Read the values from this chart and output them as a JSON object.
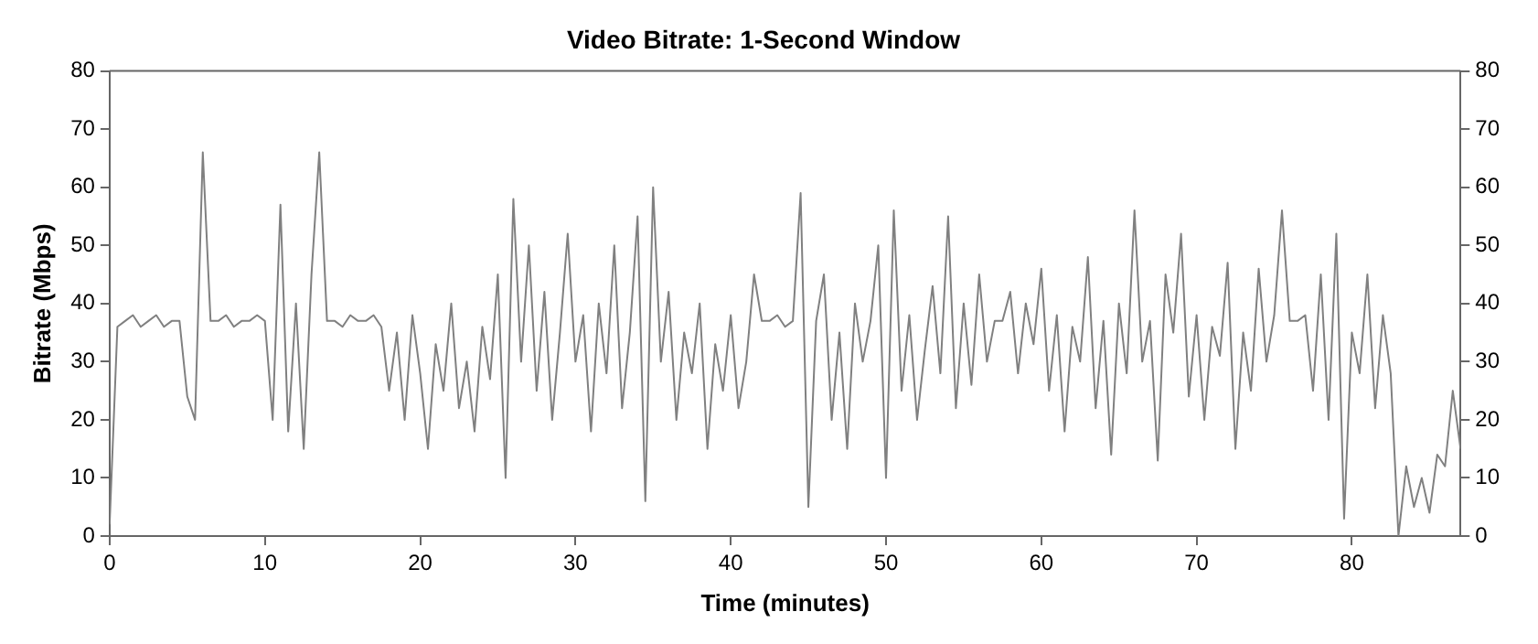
{
  "chart_data": {
    "type": "line",
    "title": "Video Bitrate: 1-Second Window",
    "xlabel": "Time (minutes)",
    "ylabel": "Bitrate (Mbps)",
    "xlim": [
      0,
      87
    ],
    "xticks": [
      0,
      10,
      20,
      30,
      40,
      50,
      60,
      70,
      80
    ],
    "ylim": [
      0,
      80
    ],
    "yticks": [
      0,
      10,
      20,
      30,
      40,
      50,
      60,
      70,
      80
    ],
    "y2lim": [
      0,
      80
    ],
    "y2ticks": [
      0,
      10,
      20,
      30,
      40,
      50,
      60,
      70,
      80
    ],
    "grid": false,
    "legend": false,
    "marker": "none",
    "line_style": "solid",
    "x": [
      0,
      0.5,
      1,
      1.5,
      2,
      2.5,
      3,
      3.5,
      4,
      4.5,
      5,
      5.5,
      6,
      6.5,
      7,
      7.5,
      8,
      8.5,
      9,
      9.5,
      10,
      10.5,
      11,
      11.5,
      12,
      12.5,
      13,
      13.5,
      14,
      14.5,
      15,
      15.5,
      16,
      16.5,
      17,
      17.5,
      18,
      18.5,
      19,
      19.5,
      20,
      20.5,
      21,
      21.5,
      22,
      22.5,
      23,
      23.5,
      24,
      24.5,
      25,
      25.5,
      26,
      26.5,
      27,
      27.5,
      28,
      28.5,
      29,
      29.5,
      30,
      30.5,
      31,
      31.5,
      32,
      32.5,
      33,
      33.5,
      34,
      34.5,
      35,
      35.5,
      36,
      36.5,
      37,
      37.5,
      38,
      38.5,
      39,
      39.5,
      40,
      40.5,
      41,
      41.5,
      42,
      42.5,
      43,
      43.5,
      44,
      44.5,
      45,
      45.5,
      46,
      46.5,
      47,
      47.5,
      48,
      48.5,
      49,
      49.5,
      50,
      50.5,
      51,
      51.5,
      52,
      52.5,
      53,
      53.5,
      54,
      54.5,
      55,
      55.5,
      56,
      56.5,
      57,
      57.5,
      58,
      58.5,
      59,
      59.5,
      60,
      60.5,
      61,
      61.5,
      62,
      62.5,
      63,
      63.5,
      64,
      64.5,
      65,
      65.5,
      66,
      66.5,
      67,
      67.5,
      68,
      68.5,
      69,
      69.5,
      70,
      70.5,
      71,
      71.5,
      72,
      72.5,
      73,
      73.5,
      74,
      74.5,
      75,
      75.5,
      76,
      76.5,
      77,
      77.5,
      78,
      78.5,
      79,
      79.5,
      80,
      80.5,
      81,
      81.5,
      82,
      82.5,
      83,
      83.5,
      84,
      84.5,
      85,
      85.5,
      86,
      86.5,
      87
    ],
    "series": [
      {
        "color": "#808080",
        "values": [
          2,
          36,
          37,
          38,
          36,
          37,
          38,
          36,
          37,
          37,
          24,
          20,
          66,
          37,
          37,
          38,
          36,
          37,
          37,
          38,
          37,
          20,
          57,
          18,
          40,
          15,
          45,
          66,
          37,
          37,
          36,
          38,
          37,
          37,
          38,
          36,
          25,
          35,
          20,
          38,
          28,
          15,
          33,
          25,
          40,
          22,
          30,
          18,
          36,
          27,
          45,
          10,
          58,
          30,
          50,
          25,
          42,
          20,
          35,
          52,
          30,
          38,
          18,
          40,
          28,
          50,
          22,
          35,
          55,
          6,
          60,
          30,
          42,
          20,
          35,
          28,
          40,
          15,
          33,
          25,
          38,
          22,
          30,
          45,
          37,
          37,
          38,
          36,
          37,
          59,
          5,
          37,
          45,
          20,
          35,
          15,
          40,
          30,
          37,
          50,
          10,
          56,
          25,
          38,
          20,
          32,
          43,
          28,
          55,
          22,
          40,
          26,
          45,
          30,
          37,
          37,
          42,
          28,
          40,
          33,
          46,
          25,
          38,
          18,
          36,
          30,
          48,
          22,
          37,
          14,
          40,
          28,
          56,
          30,
          37,
          13,
          45,
          35,
          52,
          24,
          38,
          20,
          36,
          31,
          47,
          15,
          35,
          25,
          46,
          30,
          38,
          56,
          37,
          37,
          38,
          25,
          45,
          20,
          52,
          3,
          35,
          28,
          45,
          22,
          38,
          28,
          0,
          12,
          5,
          10,
          4,
          14,
          12,
          25,
          15
        ]
      }
    ]
  }
}
